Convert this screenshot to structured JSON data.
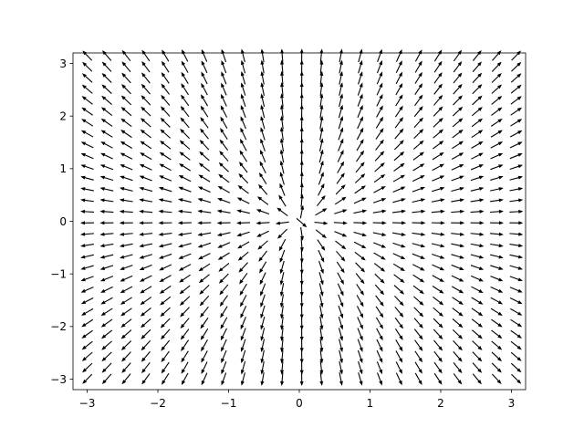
{
  "chart_data": {
    "type": "quiver",
    "title": "",
    "xlabel": "",
    "ylabel": "",
    "xlim": [
      -3.2,
      3.2
    ],
    "ylim": [
      -3.2,
      3.2
    ],
    "grid": false,
    "legend": "none",
    "field": "radial unit vectors (x, y) / sqrt(x^2 + y^2)",
    "x_grid": [
      -3,
      -2.7241,
      -2.4483,
      -2.1724,
      -1.8966,
      -1.6207,
      -1.3448,
      -1.069,
      -0.7931,
      -0.5172,
      -0.2414,
      0.0345,
      0.3103,
      0.5862,
      0.8621,
      1.1379,
      1.4138,
      1.6897,
      1.9655,
      2.2414,
      2.5172,
      2.7931,
      3.069
    ],
    "y_grid": [
      -3,
      -2.7879,
      -2.5758,
      -2.3636,
      -2.1515,
      -1.9394,
      -1.7273,
      -1.5152,
      -1.303,
      -1.0909,
      -0.8788,
      -0.6667,
      -0.4545,
      -0.2424,
      -0.0303,
      0.1818,
      0.3939,
      0.6061,
      0.8182,
      1.0303,
      1.2424,
      1.4545,
      1.6667,
      1.8788,
      2.0909,
      2.303,
      2.5152,
      2.7273,
      2.9394,
      3.1515
    ],
    "xticks": [
      -3,
      -2,
      -1,
      0,
      1,
      2,
      3
    ],
    "yticks": [
      -3,
      -2,
      -1,
      0,
      1,
      2,
      3
    ],
    "xtick_labels": [
      "−3",
      "−2",
      "−1",
      "0",
      "1",
      "2",
      "3"
    ],
    "ytick_labels": [
      "−3",
      "−2",
      "−1",
      "0",
      "1",
      "2",
      "3"
    ],
    "arrow_color": "#000000"
  }
}
